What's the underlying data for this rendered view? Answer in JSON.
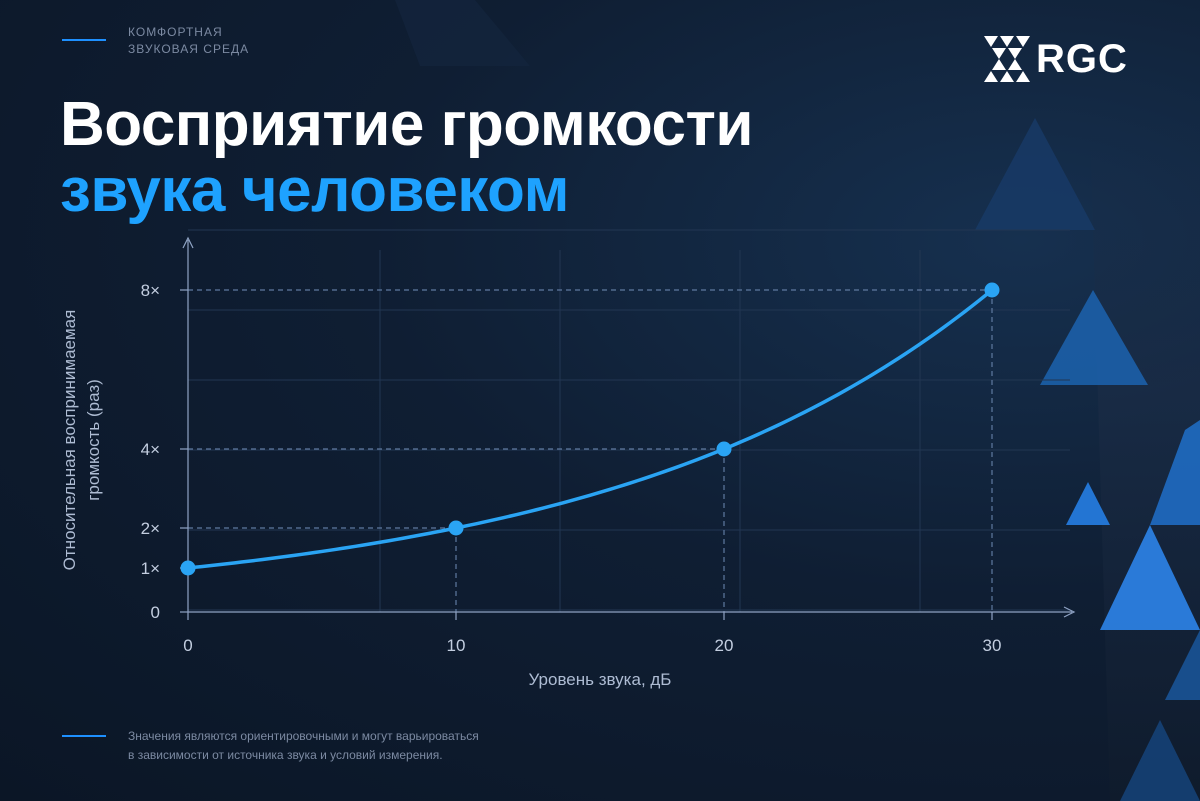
{
  "header": {
    "tagline_line1": "КОМФОРТНАЯ",
    "tagline_line2": "ЗВУКОВАЯ СРЕДА",
    "logo_text": "RGC"
  },
  "title": {
    "line1": "Восприятие громкости",
    "line2": "звука человеком"
  },
  "chart_data": {
    "type": "line",
    "xlabel": "Уровень звука, дБ",
    "ylabel_line1": "Относительная воспринимаемая",
    "ylabel_line2": "громкость (раз)",
    "x_ticks": [
      "0",
      "10",
      "20",
      "30"
    ],
    "y_ticks": [
      "0",
      "1×",
      "2×",
      "4×",
      "8×"
    ],
    "series": [
      {
        "x": [
          0,
          10,
          20,
          30
        ],
        "y": [
          1,
          2,
          4,
          8
        ]
      }
    ],
    "xlim": [
      0,
      30
    ],
    "ylim": [
      0,
      8
    ],
    "grid": true,
    "colors": {
      "line": "#2aa4f4",
      "axis": "#8fa3c4",
      "grid": "#223652"
    }
  },
  "footnote": {
    "line1": "Значения являются ориентировочными и могут варьироваться",
    "line2": "в зависимости от источника звука и условий измерения."
  }
}
